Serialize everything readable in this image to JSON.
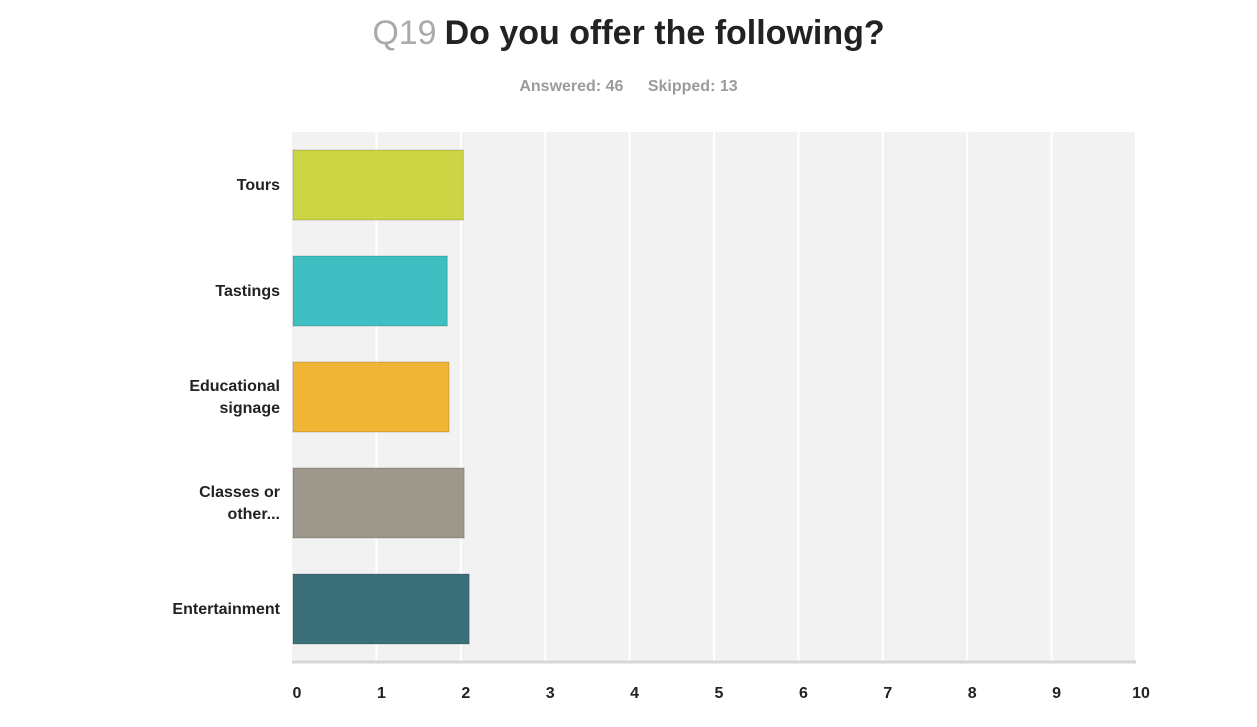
{
  "question": {
    "number": "Q19",
    "text": "Do you offer the following?",
    "answered_label": "Answered:",
    "answered": "46",
    "skipped_label": "Skipped:",
    "skipped": "13"
  },
  "chart_data": {
    "type": "bar",
    "orientation": "horizontal",
    "title": "Do you offer the following?",
    "categories": [
      [
        "Tours"
      ],
      [
        "Tastings"
      ],
      [
        "Educational",
        "signage"
      ],
      [
        "Classes or",
        "other..."
      ],
      [
        "Entertainment"
      ]
    ],
    "values": [
      2.03,
      1.84,
      1.86,
      2.04,
      2.1
    ],
    "colors": [
      "#ccd645",
      "#3fbfc1",
      "#f0b535",
      "#9d978c",
      "#3b6f7a"
    ],
    "xlim": [
      0,
      10
    ],
    "xticks": [
      "0",
      "1",
      "2",
      "3",
      "4",
      "5",
      "6",
      "7",
      "8",
      "9",
      "10"
    ],
    "grid": true,
    "plot_background": "#f2f2f2",
    "gridline_color": "#ffffff"
  }
}
